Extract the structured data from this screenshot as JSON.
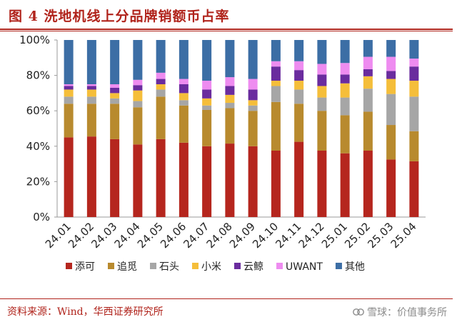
{
  "header": {
    "title": "图 4   洗地机线上分品牌销额币占率"
  },
  "footer": {
    "source": "资料来源：Wind，华西证券研究所",
    "watermark": "雪球：价值事务所",
    "watermark_icon": "snowball-logo-icon"
  },
  "colors": {
    "accent": "#b0231b",
    "series": [
      "#b5261e",
      "#b88a2e",
      "#a6a6a6",
      "#f5be3a",
      "#6a2c9e",
      "#ee8cf0",
      "#3c6ea5"
    ]
  },
  "chart_data": {
    "type": "bar",
    "stacked": true,
    "title": "",
    "xlabel": "",
    "ylabel": "",
    "ylim": [
      0,
      100
    ],
    "yticks": [
      "0%",
      "20%",
      "40%",
      "60%",
      "80%",
      "100%"
    ],
    "grid": false,
    "legend_position": "bottom",
    "categories": [
      "24.01",
      "24.02",
      "24.03",
      "24.04",
      "24.05",
      "24.06",
      "24.07",
      "24.08",
      "24.09",
      "24.10",
      "24.11",
      "24.12",
      "25.01",
      "25.02",
      "25.03",
      "25.04"
    ],
    "series": [
      {
        "name": "添可",
        "values": [
          45,
          45.5,
          44,
          41,
          44,
          42,
          40,
          41.5,
          40,
          37.5,
          42.5,
          37.5,
          36,
          37.5,
          32.5,
          31.5
        ]
      },
      {
        "name": "追觅",
        "values": [
          19,
          18.5,
          20,
          21,
          24,
          21,
          20.5,
          20,
          20,
          27.5,
          21.5,
          22.5,
          21.5,
          22,
          19.5,
          17
        ]
      },
      {
        "name": "石头",
        "values": [
          4,
          4,
          3,
          3.5,
          4,
          3,
          2.5,
          3,
          3,
          9,
          8,
          7.5,
          10,
          13,
          17.5,
          19.5
        ]
      },
      {
        "name": "小米",
        "values": [
          4,
          4,
          3,
          6,
          3,
          4,
          4,
          4.5,
          3,
          3,
          5,
          6.5,
          8,
          7,
          8.5,
          9
        ]
      },
      {
        "name": "云鲸",
        "values": [
          2,
          2,
          3,
          3,
          3,
          5,
          5,
          5,
          6,
          8,
          6,
          6.5,
          5,
          4,
          4.5,
          8
        ]
      },
      {
        "name": "UWANT",
        "values": [
          1,
          1,
          2,
          3,
          3.5,
          3,
          5,
          5,
          6,
          3,
          5,
          6,
          6.5,
          7,
          8,
          4.5
        ]
      },
      {
        "name": "其他",
        "values": [
          25,
          25,
          25,
          22.5,
          18.5,
          22,
          23,
          21,
          22,
          12,
          12,
          13.5,
          13,
          9.5,
          9.5,
          10.5
        ]
      }
    ]
  }
}
